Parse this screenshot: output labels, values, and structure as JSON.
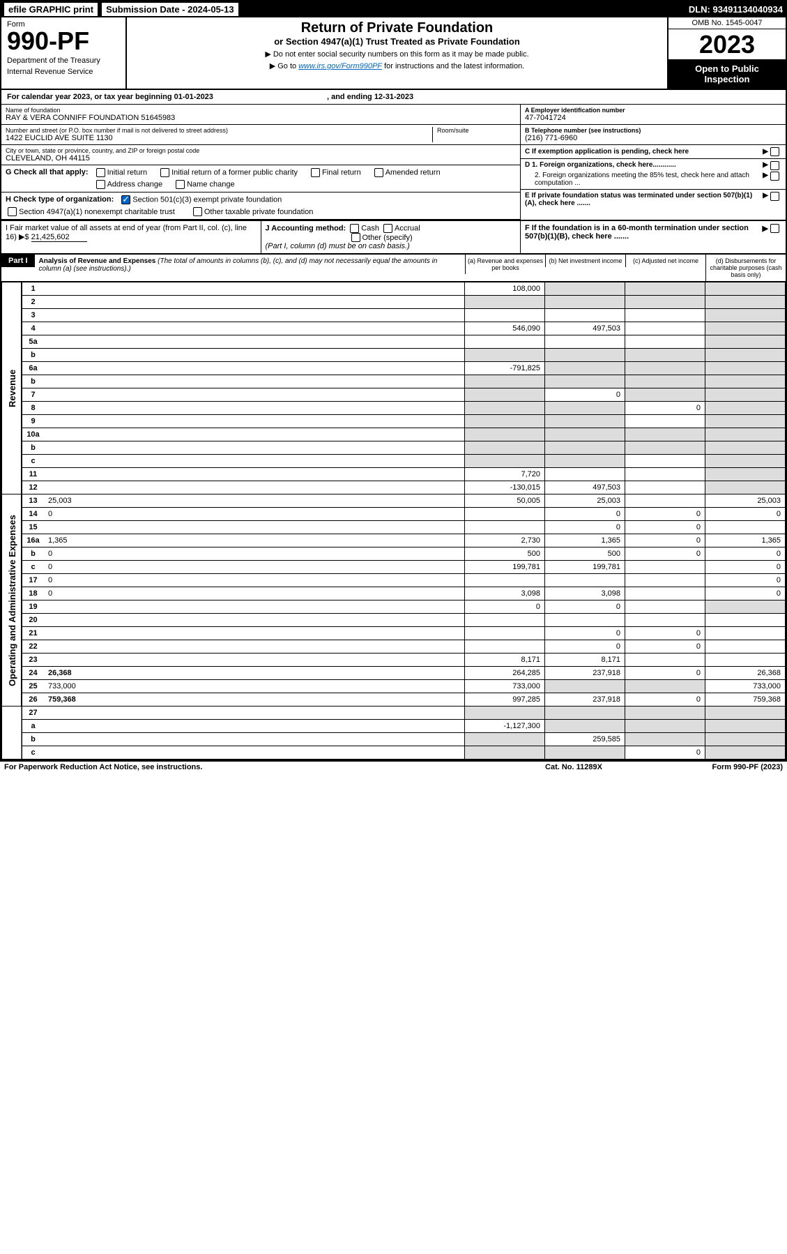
{
  "top": {
    "efile": "efile GRAPHIC print",
    "submission": "Submission Date - 2024-05-13",
    "dln": "DLN: 93491134040934"
  },
  "header": {
    "form_label": "Form",
    "form_num": "990-PF",
    "dept1": "Department of the Treasury",
    "dept2": "Internal Revenue Service",
    "title": "Return of Private Foundation",
    "subtitle": "or Section 4947(a)(1) Trust Treated as Private Foundation",
    "instr1": "▶ Do not enter social security numbers on this form as it may be made public.",
    "instr2_pre": "▶ Go to ",
    "instr2_link": "www.irs.gov/Form990PF",
    "instr2_post": " for instructions and the latest information.",
    "omb": "OMB No. 1545-0047",
    "year": "2023",
    "open": "Open to Public Inspection"
  },
  "cal_year": {
    "text": "For calendar year 2023, or tax year beginning 01-01-2023",
    "ending": ", and ending 12-31-2023"
  },
  "info": {
    "name_label": "Name of foundation",
    "name": "RAY & VERA CONNIFF FOUNDATION 51645983",
    "addr_label": "Number and street (or P.O. box number if mail is not delivered to street address)",
    "addr": "1422 EUCLID AVE SUITE 1130",
    "room_label": "Room/suite",
    "city_label": "City or town, state or province, country, and ZIP or foreign postal code",
    "city": "CLEVELAND, OH  44115",
    "a_label": "A Employer identification number",
    "ein": "47-7041724",
    "b_label": "B Telephone number (see instructions)",
    "phone": "(216) 771-6960",
    "c_label": "C If exemption application is pending, check here",
    "d1_label": "D 1. Foreign organizations, check here............",
    "d2_label": "2. Foreign organizations meeting the 85% test, check here and attach computation ...",
    "e_label": "E  If private foundation status was terminated under section 507(b)(1)(A), check here .......",
    "f_label": "F  If the foundation is in a 60-month termination under section 507(b)(1)(B), check here .......",
    "g_label": "G Check all that apply:",
    "g_opts": [
      "Initial return",
      "Initial return of a former public charity",
      "Final return",
      "Amended return",
      "Address change",
      "Name change"
    ],
    "h_label": "H Check type of organization:",
    "h1": "Section 501(c)(3) exempt private foundation",
    "h2": "Section 4947(a)(1) nonexempt charitable trust",
    "h3": "Other taxable private foundation",
    "i_label": "I Fair market value of all assets at end of year (from Part II, col. (c), line 16) ▶$ ",
    "i_value": "21,425,602",
    "j_label": "J Accounting method:",
    "j_cash": "Cash",
    "j_accrual": "Accrual",
    "j_other": "Other (specify)",
    "j_note": "(Part I, column (d) must be on cash basis.)"
  },
  "part1": {
    "label": "Part I",
    "title": "Analysis of Revenue and Expenses",
    "note": "(The total of amounts in columns (b), (c), and (d) may not necessarily equal the amounts in column (a) (see instructions).)",
    "col_a": "(a) Revenue and expenses per books",
    "col_b": "(b) Net investment income",
    "col_c": "(c) Adjusted net income",
    "col_d": "(d) Disbursements for charitable purposes (cash basis only)",
    "side_rev": "Revenue",
    "side_exp": "Operating and Administrative Expenses"
  },
  "rows": [
    {
      "n": "1",
      "d": "",
      "a": "108,000",
      "b": "",
      "c": "",
      "sb": true,
      "sc": true,
      "sd": true
    },
    {
      "n": "2",
      "d": "",
      "a": "",
      "b": "",
      "c": "",
      "sa": true,
      "sb": true,
      "sc": true,
      "sd": true
    },
    {
      "n": "3",
      "d": "",
      "a": "",
      "b": "",
      "c": "",
      "sd": true
    },
    {
      "n": "4",
      "d": "",
      "a": "546,090",
      "b": "497,503",
      "c": "",
      "sd": true
    },
    {
      "n": "5a",
      "d": "",
      "a": "",
      "b": "",
      "c": "",
      "sd": true
    },
    {
      "n": "b",
      "d": "",
      "a": "",
      "b": "",
      "c": "",
      "sa": true,
      "sb": true,
      "sc": true,
      "sd": true
    },
    {
      "n": "6a",
      "d": "",
      "a": "-791,825",
      "b": "",
      "c": "",
      "sb": true,
      "sc": true,
      "sd": true
    },
    {
      "n": "b",
      "d": "",
      "a": "",
      "b": "",
      "c": "",
      "sa": true,
      "sb": true,
      "sc": true,
      "sd": true
    },
    {
      "n": "7",
      "d": "",
      "a": "",
      "b": "0",
      "c": "",
      "sa": true,
      "sc": true,
      "sd": true
    },
    {
      "n": "8",
      "d": "",
      "a": "",
      "b": "",
      "c": "0",
      "sa": true,
      "sb": true,
      "sd": true
    },
    {
      "n": "9",
      "d": "",
      "a": "",
      "b": "",
      "c": "",
      "sa": true,
      "sb": true,
      "sd": true
    },
    {
      "n": "10a",
      "d": "",
      "a": "",
      "b": "",
      "c": "",
      "sa": true,
      "sb": true,
      "sc": true,
      "sd": true
    },
    {
      "n": "b",
      "d": "",
      "a": "",
      "b": "",
      "c": "",
      "sa": true,
      "sb": true,
      "sc": true,
      "sd": true
    },
    {
      "n": "c",
      "d": "",
      "a": "",
      "b": "",
      "c": "",
      "sa": true,
      "sb": true,
      "sd": true
    },
    {
      "n": "11",
      "d": "",
      "a": "7,720",
      "b": "",
      "c": "",
      "sd": true
    },
    {
      "n": "12",
      "d": "",
      "a": "-130,015",
      "b": "497,503",
      "c": "",
      "sd": true,
      "bold": true
    },
    {
      "n": "13",
      "d": "25,003",
      "a": "50,005",
      "b": "25,003",
      "c": "",
      "exp": true
    },
    {
      "n": "14",
      "d": "0",
      "a": "",
      "b": "0",
      "c": "0"
    },
    {
      "n": "15",
      "d": "",
      "a": "",
      "b": "0",
      "c": "0"
    },
    {
      "n": "16a",
      "d": "1,365",
      "a": "2,730",
      "b": "1,365",
      "c": "0"
    },
    {
      "n": "b",
      "d": "0",
      "a": "500",
      "b": "500",
      "c": "0"
    },
    {
      "n": "c",
      "d": "0",
      "a": "199,781",
      "b": "199,781",
      "c": ""
    },
    {
      "n": "17",
      "d": "0",
      "a": "",
      "b": "",
      "c": ""
    },
    {
      "n": "18",
      "d": "0",
      "a": "3,098",
      "b": "3,098",
      "c": ""
    },
    {
      "n": "19",
      "d": "",
      "a": "0",
      "b": "0",
      "c": "",
      "sd": true
    },
    {
      "n": "20",
      "d": "",
      "a": "",
      "b": "",
      "c": ""
    },
    {
      "n": "21",
      "d": "",
      "a": "",
      "b": "0",
      "c": "0"
    },
    {
      "n": "22",
      "d": "",
      "a": "",
      "b": "0",
      "c": "0"
    },
    {
      "n": "23",
      "d": "",
      "a": "8,171",
      "b": "8,171",
      "c": ""
    },
    {
      "n": "24",
      "d": "26,368",
      "a": "264,285",
      "b": "237,918",
      "c": "0",
      "bold": true
    },
    {
      "n": "25",
      "d": "733,000",
      "a": "733,000",
      "b": "",
      "c": "",
      "sb": true,
      "sc": true
    },
    {
      "n": "26",
      "d": "759,368",
      "a": "997,285",
      "b": "237,918",
      "c": "0",
      "bold": true
    },
    {
      "n": "27",
      "d": "",
      "a": "",
      "b": "",
      "c": "",
      "sa": true,
      "sb": true,
      "sc": true,
      "sd": true,
      "sep": true
    },
    {
      "n": "a",
      "d": "",
      "a": "-1,127,300",
      "b": "",
      "c": "",
      "sb": true,
      "sc": true,
      "sd": true,
      "bold": true
    },
    {
      "n": "b",
      "d": "",
      "a": "",
      "b": "259,585",
      "c": "",
      "sa": true,
      "sc": true,
      "sd": true,
      "bold": true
    },
    {
      "n": "c",
      "d": "",
      "a": "",
      "b": "",
      "c": "0",
      "sa": true,
      "sb": true,
      "sd": true,
      "bold": true
    }
  ],
  "footer": {
    "left": "For Paperwork Reduction Act Notice, see instructions.",
    "mid": "Cat. No. 11289X",
    "right": "Form 990-PF (2023)"
  }
}
